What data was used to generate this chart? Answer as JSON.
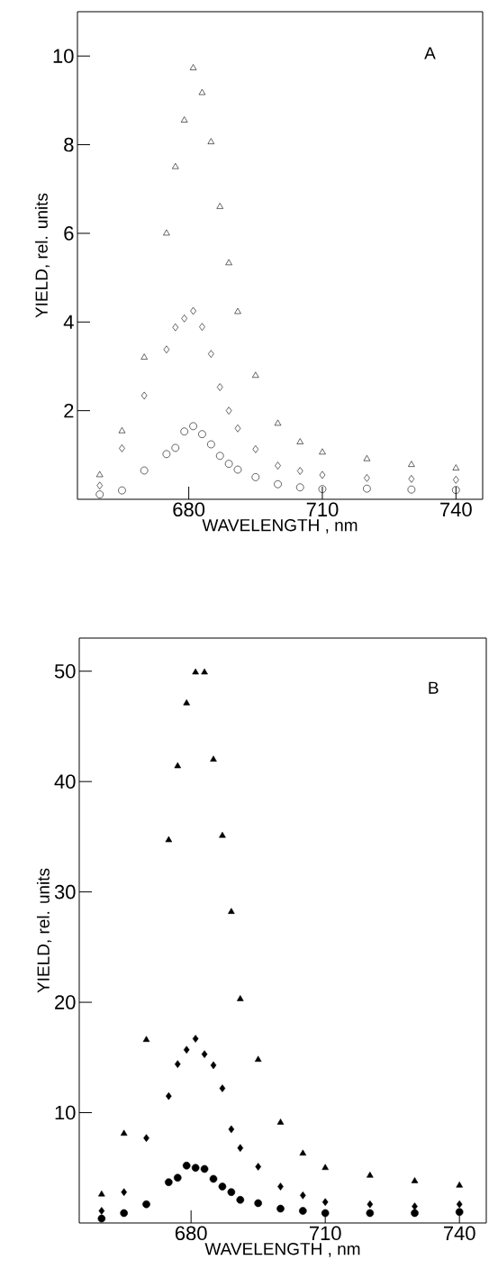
{
  "chart_data": [
    {
      "type": "scatter",
      "title": "A",
      "xlabel": "WAVELENGTH , nm",
      "ylabel": "YIELD, rel. units",
      "x": [
        660,
        665,
        670,
        675,
        677,
        679,
        681,
        683,
        685,
        687,
        689,
        691,
        695,
        700,
        705,
        710,
        720,
        730,
        740
      ],
      "xlim": [
        655,
        746
      ],
      "ylim": [
        0,
        11
      ],
      "xticks": [
        680,
        710,
        740
      ],
      "yticks": [
        2,
        4,
        6,
        8,
        10
      ],
      "grid": false,
      "series": [
        {
          "color": "#000000",
          "marker": "triangle",
          "values": [
            0.55,
            1.54,
            3.2,
            6.0,
            7.5,
            8.55,
            9.73,
            9.17,
            8.06,
            6.6,
            5.33,
            4.23,
            2.79,
            1.71,
            1.29,
            1.06,
            0.91,
            0.78,
            0.7
          ]
        },
        {
          "color": "#000000",
          "marker": "diamond",
          "values": [
            0.31,
            1.15,
            2.34,
            3.38,
            3.88,
            4.08,
            4.25,
            3.89,
            3.28,
            2.53,
            2.0,
            1.6,
            1.13,
            0.76,
            0.64,
            0.55,
            0.48,
            0.46,
            0.44
          ]
        },
        {
          "color": "#000000",
          "marker": "circle",
          "values": [
            0.11,
            0.2,
            0.65,
            1.02,
            1.16,
            1.53,
            1.65,
            1.47,
            1.24,
            0.98,
            0.8,
            0.67,
            0.5,
            0.34,
            0.27,
            0.23,
            0.24,
            0.22,
            0.21
          ]
        }
      ]
    },
    {
      "type": "scatter",
      "title": "B",
      "xlabel": "WAVELENGTH , nm",
      "ylabel": "YIELD, rel. units",
      "x": [
        660,
        665,
        670,
        675,
        677,
        679,
        681,
        683,
        685,
        687,
        689,
        691,
        695,
        700,
        705,
        710,
        720,
        730,
        740
      ],
      "xlim": [
        655,
        746
      ],
      "ylim": [
        0,
        53
      ],
      "xticks": [
        680,
        710,
        740
      ],
      "yticks": [
        10,
        20,
        30,
        40,
        50
      ],
      "grid": false,
      "series": [
        {
          "color": "#000000",
          "marker": "triangle",
          "values": [
            2.6,
            8.1,
            16.6,
            34.7,
            41.4,
            47.1,
            49.9,
            49.9,
            42.0,
            35.1,
            28.2,
            20.3,
            14.8,
            9.1,
            6.3,
            5.0,
            4.3,
            3.8,
            3.4
          ]
        },
        {
          "color": "#000000",
          "marker": "diamond",
          "values": [
            1.1,
            2.8,
            7.7,
            11.5,
            14.4,
            15.7,
            16.7,
            15.3,
            14.3,
            12.2,
            8.5,
            6.8,
            5.1,
            3.3,
            2.5,
            1.9,
            1.7,
            1.5,
            1.7
          ]
        },
        {
          "color": "#000000",
          "marker": "circle",
          "values": [
            0.4,
            0.9,
            1.7,
            3.7,
            4.1,
            5.2,
            5.0,
            4.9,
            4.0,
            3.3,
            2.8,
            2.1,
            1.8,
            1.3,
            1.1,
            0.9,
            0.9,
            0.9,
            1.0
          ]
        }
      ]
    }
  ]
}
